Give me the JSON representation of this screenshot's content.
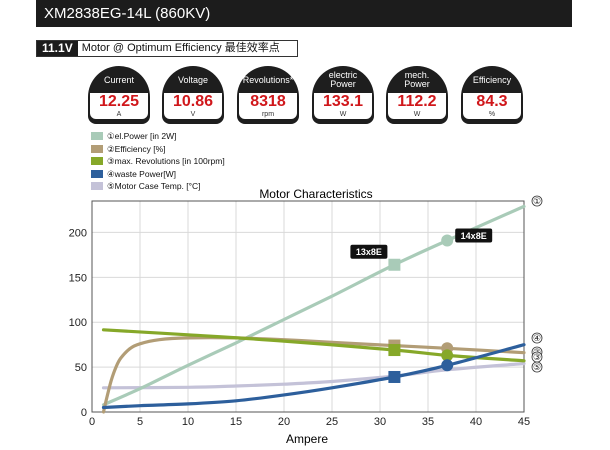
{
  "header": {
    "model": "XM2838EG-14L (860KV)"
  },
  "condition": {
    "voltage": "11.1V",
    "description": "Motor @ Optimum Efficiency   最佳效率点"
  },
  "gauges": [
    {
      "label": "Current",
      "value": "12.25",
      "unit": "A"
    },
    {
      "label": "Voltage",
      "value": "10.86",
      "unit": "V"
    },
    {
      "label": "Revolutions*",
      "value": "8318",
      "unit": "rpm"
    },
    {
      "label": "electric\nPower",
      "value": "133.1",
      "unit": "W"
    },
    {
      "label": "mech.\nPower",
      "value": "112.2",
      "unit": "W"
    },
    {
      "label": "Efficiency",
      "value": "84.3",
      "unit": "%"
    }
  ],
  "legend": [
    {
      "label": "①el.Power [in 2W]",
      "color": "#a9cbb8"
    },
    {
      "label": "②Efficiency [%]",
      "color": "#b29d76"
    },
    {
      "label": "③max. Revolutions [in 100rpm]",
      "color": "#86a829"
    },
    {
      "label": "④waste Power[W]",
      "color": "#2d5f9c"
    },
    {
      "label": "⑤Motor Case Temp. [°C]",
      "color": "#c4c2d8"
    }
  ],
  "chart_data": {
    "type": "line",
    "title": "Motor Characteristics",
    "xlabel": "Ampere",
    "ylabel": "",
    "xlim": [
      0,
      45
    ],
    "ylim": [
      0,
      235
    ],
    "xticks": [
      0,
      5,
      10,
      15,
      20,
      25,
      30,
      35,
      40,
      45
    ],
    "yticks": [
      0,
      50,
      100,
      150,
      200
    ],
    "grid": true,
    "series": [
      {
        "name": "①el.Power [in 2W]",
        "marker_label": "①",
        "color": "#a9cbb8",
        "x": [
          1.2,
          5,
          10,
          15,
          20,
          25,
          31.5,
          37,
          45
        ],
        "y": [
          8,
          26,
          52,
          77,
          103,
          129,
          164,
          191,
          229
        ]
      },
      {
        "name": "②Efficiency [%]",
        "marker_label": "②",
        "color": "#b29d76",
        "x": [
          1.2,
          1.5,
          2,
          2.5,
          3,
          4,
          5,
          7,
          10,
          15,
          20,
          25,
          31.5,
          37,
          45
        ],
        "y": [
          0,
          14,
          35,
          50,
          60,
          71,
          76,
          80.5,
          82.5,
          82.5,
          80.5,
          77.5,
          74,
          71,
          66
        ]
      },
      {
        "name": "③max. Revolutions [in 100rpm]",
        "marker_label": "③",
        "color": "#86a829",
        "x": [
          1.2,
          10,
          20,
          31.5,
          37,
          45
        ],
        "y": [
          91.5,
          86,
          79,
          69,
          63,
          57
        ]
      },
      {
        "name": "④waste Power[W]",
        "marker_label": "④",
        "color": "#2d5f9c",
        "x": [
          1.2,
          5,
          10,
          15,
          20,
          25,
          31.5,
          37,
          45
        ],
        "y": [
          5,
          7,
          9,
          12.5,
          19,
          27,
          39,
          52,
          75
        ]
      },
      {
        "name": "⑤Motor Case Temp. [°C]",
        "marker_label": "⑤",
        "color": "#c4c2d8",
        "x": [
          1.2,
          10,
          15,
          20,
          25,
          31.5,
          37,
          45
        ],
        "y": [
          27,
          27.5,
          29,
          31,
          34,
          40,
          47,
          54
        ]
      }
    ],
    "highlights": [
      {
        "label": "13x8E",
        "x": 31.5,
        "shape": "square",
        "values": [
          164,
          74,
          69,
          39
        ]
      },
      {
        "label": "14x8E",
        "x": 37,
        "shape": "circle",
        "values": [
          191,
          71,
          63,
          52
        ]
      }
    ]
  }
}
